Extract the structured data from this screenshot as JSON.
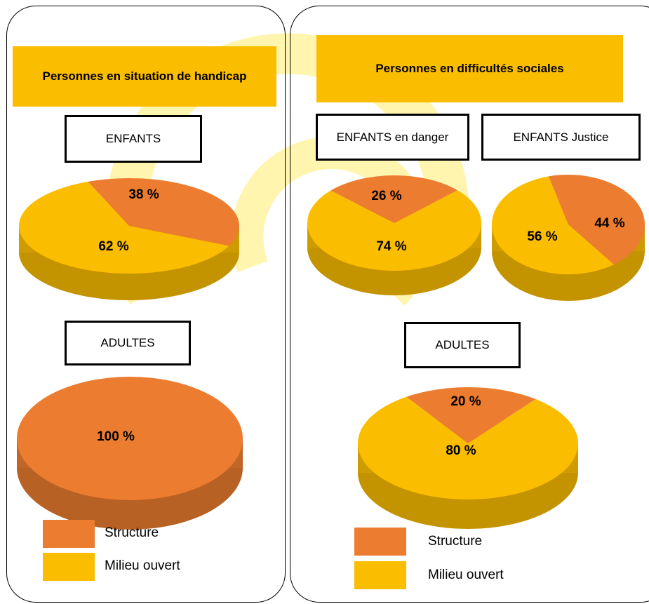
{
  "colors": {
    "structure": "#ec7c30",
    "milieu": "#fbbd00",
    "watermark": "#fff2a8"
  },
  "left": {
    "title": "Personnes en situation de handicap",
    "enfants_label": "ENFANTS",
    "adultes_label": "ADULTES",
    "legend": {
      "structure": "Structure",
      "milieu": "Milieu ouvert"
    }
  },
  "right": {
    "title": "Personnes en difficultés sociales",
    "enfants_danger_label": "ENFANTS en danger",
    "enfants_justice_label": "ENFANTS Justice",
    "adultes_label": "ADULTES",
    "legend": {
      "structure": "Structure",
      "milieu": "Milieu ouvert"
    }
  },
  "chart_data": [
    {
      "type": "pie",
      "title": "ENFANTS",
      "categories": [
        "Structure",
        "Milieu ouvert"
      ],
      "values": [
        38,
        62
      ],
      "labels": [
        "38 %",
        "62 %"
      ]
    },
    {
      "type": "pie",
      "title": "ADULTES",
      "categories": [
        "Structure",
        "Milieu ouvert"
      ],
      "values": [
        100,
        0
      ],
      "labels": [
        "100 %"
      ]
    },
    {
      "type": "pie",
      "title": "ENFANTS en danger",
      "categories": [
        "Structure",
        "Milieu ouvert"
      ],
      "values": [
        26,
        74
      ],
      "labels": [
        "26 %",
        "74 %"
      ]
    },
    {
      "type": "pie",
      "title": "ENFANTS Justice",
      "categories": [
        "Structure",
        "Milieu ouvert"
      ],
      "values": [
        44,
        56
      ],
      "labels": [
        "44 %",
        "56 %"
      ]
    },
    {
      "type": "pie",
      "title": "ADULTES",
      "categories": [
        "Structure",
        "Milieu ouvert"
      ],
      "values": [
        20,
        80
      ],
      "labels": [
        "20 %",
        "80 %"
      ]
    }
  ]
}
